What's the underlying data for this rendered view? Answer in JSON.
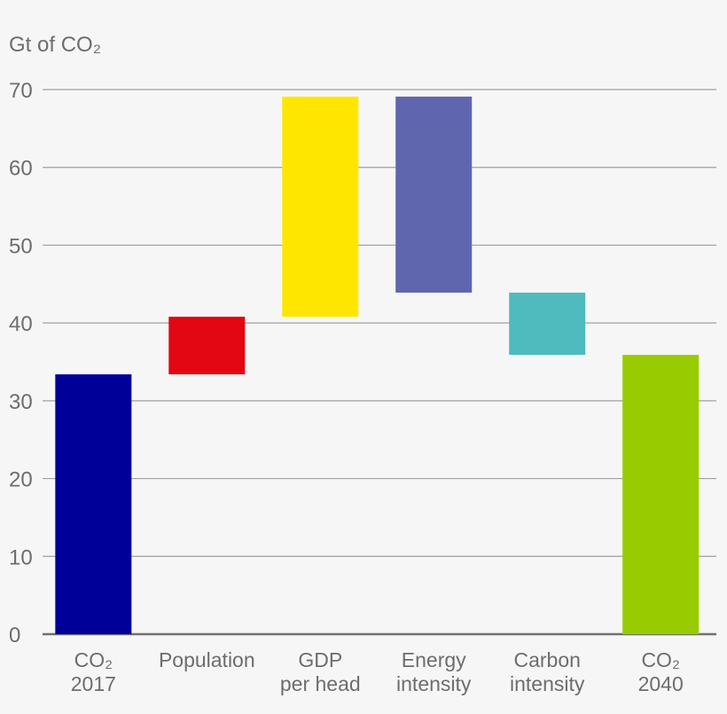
{
  "chart_data": {
    "type": "bar",
    "subtype": "waterfall",
    "title": "",
    "ylabel": "Gt of CO₂",
    "xlabel": "",
    "ylim": [
      0,
      70
    ],
    "yticks": [
      0,
      10,
      20,
      30,
      40,
      50,
      60,
      70
    ],
    "grid": true,
    "categories": [
      "CO₂\n2017",
      "Population",
      "GDP\nper head",
      "Energy\nintensity",
      "Carbon\nintensity",
      "CO₂\n2040"
    ],
    "bars": [
      {
        "start": 0,
        "end": 33.4,
        "color": "#000099"
      },
      {
        "start": 33.4,
        "end": 40.8,
        "color": "#e30613"
      },
      {
        "start": 40.8,
        "end": 69.1,
        "color": "#ffe600"
      },
      {
        "start": 69.1,
        "end": 43.9,
        "color": "#6066ae"
      },
      {
        "start": 43.9,
        "end": 35.9,
        "color": "#4fbbbf"
      },
      {
        "start": 0,
        "end": 35.9,
        "color": "#99cc00"
      }
    ]
  }
}
